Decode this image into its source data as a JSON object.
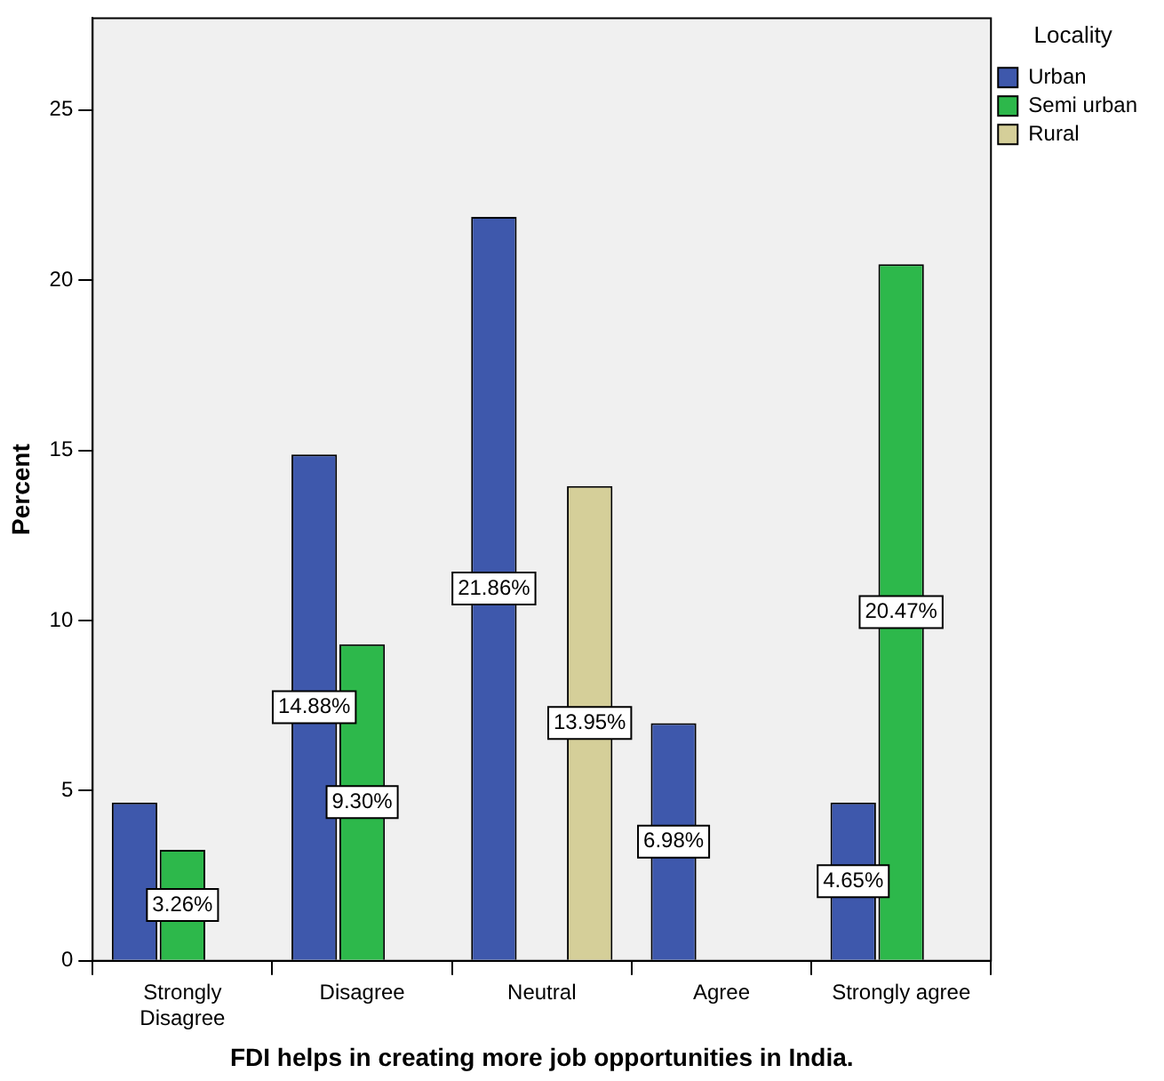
{
  "chart_data": {
    "type": "bar",
    "xlabel": "FDI helps in creating more job opportunities in India.",
    "ylabel": "Percent",
    "legend_title": "Locality",
    "legend": "top right",
    "grid": false,
    "categories": [
      "Strongly Disagree",
      "Disagree",
      "Neutral",
      "Agree",
      "Strongly agree"
    ],
    "series": [
      {
        "name": "Urban",
        "color": "#3e58ac",
        "values": [
          4.65,
          14.88,
          21.86,
          6.98,
          4.65
        ],
        "value_labels": [
          null,
          "14.88%",
          "21.86%",
          "6.98%",
          "4.65%"
        ]
      },
      {
        "name": "Semi urban",
        "color": "#2db84b",
        "values": [
          3.26,
          9.3,
          null,
          null,
          20.47
        ],
        "value_labels": [
          "3.26%",
          "9.30%",
          null,
          null,
          "20.47%"
        ]
      },
      {
        "name": "Rural",
        "color": "#d5cf99",
        "values": [
          null,
          null,
          13.95,
          null,
          null
        ],
        "value_labels": [
          null,
          null,
          "13.95%",
          null,
          null
        ]
      }
    ],
    "ylim": [
      0,
      27.7
    ],
    "yticks": [
      0,
      5,
      10,
      15,
      20,
      25
    ]
  }
}
